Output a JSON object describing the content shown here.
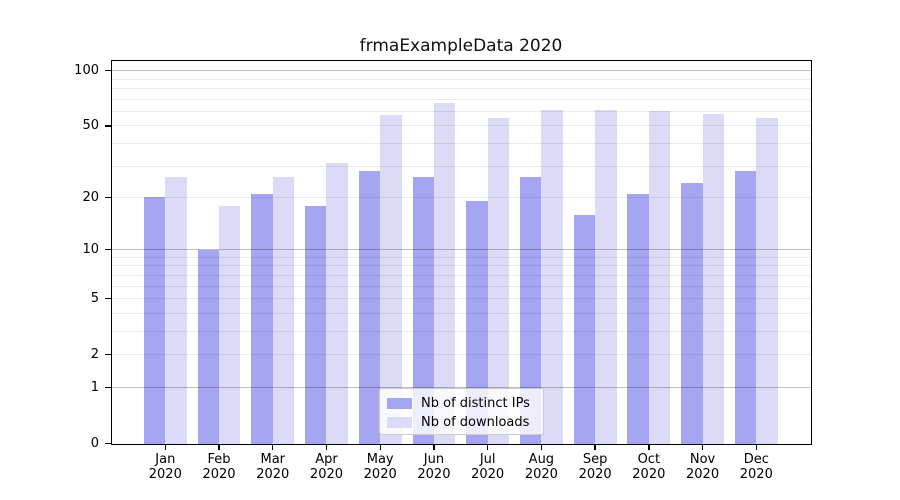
{
  "title": "frmaExampleData 2020",
  "colors": {
    "bar_distinct_ips": "#a5a5f2",
    "bar_downloads": "#dbdbf8",
    "grid_major": "rgba(0,0,0,0.25)",
    "grid_minor": "rgba(0,0,0,0.075)",
    "axis": "#000000"
  },
  "legend": {
    "position": "bottom-center",
    "items": [
      {
        "label": "Nb of distinct IPs",
        "series": "distinct_ips"
      },
      {
        "label": "Nb of downloads",
        "series": "downloads"
      }
    ]
  },
  "chart_data": {
    "type": "bar",
    "title": "frmaExampleData 2020",
    "categories": [
      "Jan 2020",
      "Feb 2020",
      "Mar 2020",
      "Apr 2020",
      "May 2020",
      "Jun 2020",
      "Jul 2020",
      "Aug 2020",
      "Sep 2020",
      "Oct 2020",
      "Nov 2020",
      "Dec 2020"
    ],
    "series": [
      {
        "name": "Nb of distinct IPs",
        "values": [
          20,
          10,
          21,
          18,
          28,
          26,
          19,
          26,
          16,
          21,
          24,
          28
        ]
      },
      {
        "name": "Nb of downloads",
        "values": [
          26,
          18,
          26,
          31,
          57,
          67,
          55,
          61,
          61,
          60,
          58,
          55
        ]
      }
    ],
    "xlabel": "",
    "ylabel": "",
    "y_axis": {
      "scale": "log10(value+1)",
      "tick_labels": [
        0,
        1,
        2,
        5,
        10,
        20,
        50,
        100
      ],
      "gridlines_major": [
        1,
        10,
        100
      ],
      "gridlines_minor": [
        2,
        3,
        4,
        5,
        6,
        7,
        8,
        9,
        20,
        30,
        40,
        50,
        60,
        70,
        80,
        90
      ],
      "range": [
        0,
        113
      ]
    },
    "grid": true,
    "legend_position": "lower center"
  }
}
